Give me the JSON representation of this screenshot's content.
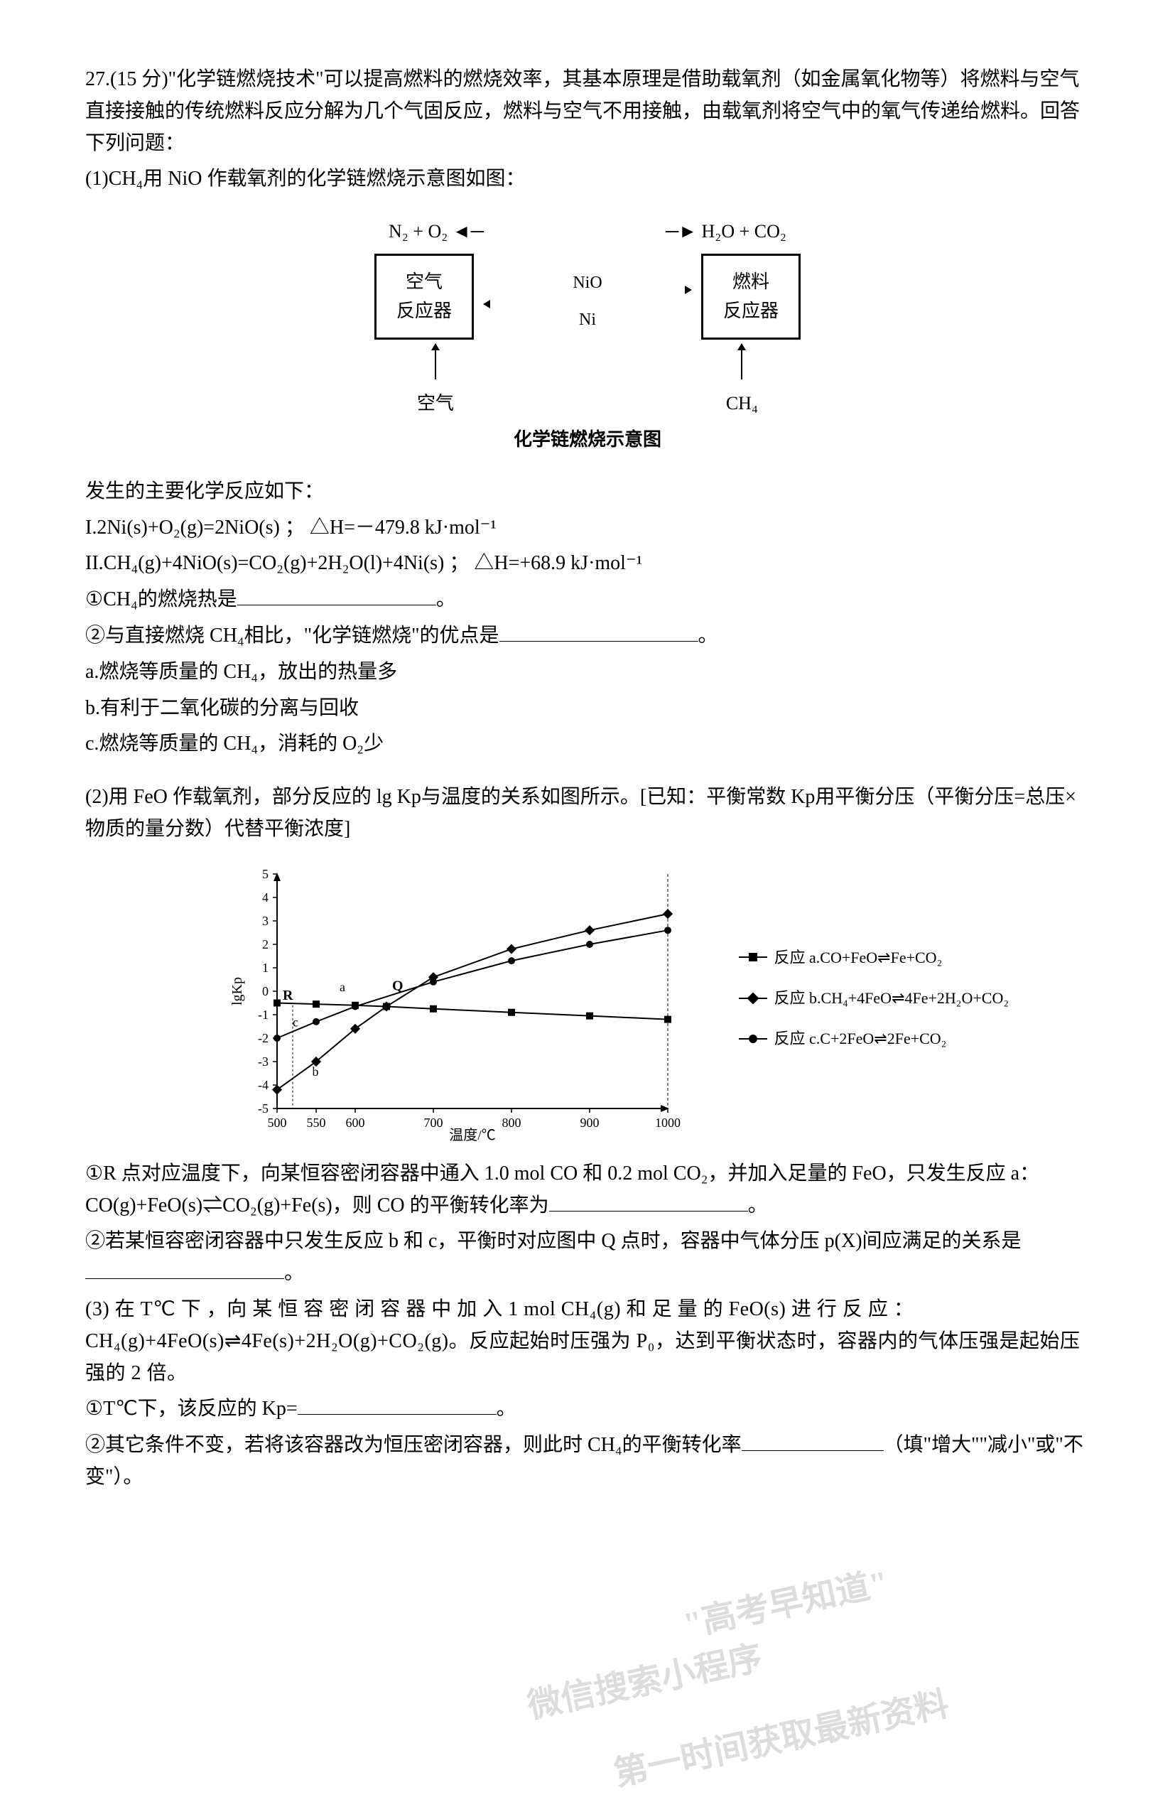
{
  "q": {
    "header": "27.(15 分)\"化学链燃烧技术\"可以提高燃料的燃烧效率，其基本原理是借助载氧剂（如金属氧化物等）将燃料与空气直接接触的传统燃料反应分解为几个气固反应，燃料与空气不用接触，由载氧剂将空气中的氧气传递给燃料。回答下列问题：",
    "p1": "(1)CH₄用 NiO 作载氧剂的化学链燃烧示意图如图：",
    "diagram1": {
      "out_left": "N₂ + O₂",
      "out_right": "H₂O + CO₂",
      "box_left_l1": "空气",
      "box_left_l2": "反应器",
      "box_right_l1": "燃料",
      "box_right_l2": "反应器",
      "top_label": "NiO",
      "bot_label": "Ni",
      "in_left": "空气",
      "in_right": "CH₄",
      "caption": "化学链燃烧示意图"
    },
    "r_intro": "发生的主要化学反应如下：",
    "r1": "I.2Ni(s)+O₂(g)=2NiO(s) ；  △H=－479.8 kJ·mol⁻¹",
    "r2": "II.CH₄(g)+4NiO(s)=CO₂(g)+2H₂O(l)+4Ni(s) ；  △H=+68.9 kJ·mol⁻¹",
    "q1_1": "①CH₄的燃烧热是",
    "q1_1_end": "。",
    "q1_2": "②与直接燃烧 CH₄相比，\"化学链燃烧\"的优点是",
    "q1_2_end": "。",
    "opt_a": "a.燃烧等质量的 CH₄，放出的热量多",
    "opt_b": "b.有利于二氧化碳的分离与回收",
    "opt_c": "c.燃烧等质量的 CH₄，消耗的 O₂少",
    "p2": "(2)用 FeO 作载氧剂，部分反应的 lg Kp与温度的关系如图所示。[已知：平衡常数 Kp用平衡分压（平衡分压=总压×物质的量分数）代替平衡浓度]",
    "chart": {
      "ylabel": "lgKp",
      "yticks": [
        5,
        4,
        3,
        2,
        1,
        0,
        -1,
        -2,
        -3,
        -4,
        -5
      ],
      "xlabel": "温度/℃",
      "xticks": [
        500,
        550,
        600,
        700,
        800,
        900,
        1000
      ],
      "ylim": [
        -5,
        5
      ],
      "xlim": [
        500,
        1000
      ],
      "point_labels": {
        "R": "R",
        "Q": "Q",
        "a": "a",
        "b": "b",
        "c": "c"
      },
      "R_x": 520,
      "R_y": -0.6,
      "Q_x": 640,
      "Q_y": -0.2,
      "series": {
        "a": {
          "type": "line",
          "marker": "square",
          "label": "反应 a.CO+FeO⇌Fe+CO₂",
          "color": "#000000",
          "points": [
            [
              500,
              -0.5
            ],
            [
              550,
              -0.55
            ],
            [
              600,
              -0.6
            ],
            [
              640,
              -0.65
            ],
            [
              700,
              -0.75
            ],
            [
              800,
              -0.9
            ],
            [
              900,
              -1.05
            ],
            [
              1000,
              -1.2
            ]
          ]
        },
        "b": {
          "type": "line",
          "marker": "diamond",
          "label": "反应 b.CH₄+4FeO⇌4Fe+2H₂O+CO₂",
          "color": "#000000",
          "points": [
            [
              500,
              -4.2
            ],
            [
              550,
              -3.0
            ],
            [
              600,
              -1.6
            ],
            [
              640,
              -0.65
            ],
            [
              700,
              0.6
            ],
            [
              800,
              1.8
            ],
            [
              900,
              2.6
            ],
            [
              1000,
              3.3
            ]
          ]
        },
        "c": {
          "type": "line",
          "marker": "circle",
          "label": "反应 c.C+2FeO⇌2Fe+CO₂",
          "color": "#000000",
          "points": [
            [
              500,
              -2.0
            ],
            [
              550,
              -1.3
            ],
            [
              600,
              -0.65
            ],
            [
              700,
              0.4
            ],
            [
              800,
              1.3
            ],
            [
              900,
              2.0
            ],
            [
              1000,
              2.6
            ]
          ]
        }
      }
    },
    "q2_1a": "①R 点对应温度下，向某恒容密闭容器中通入 1.0 mol CO 和 0.2 mol CO₂，并加入足量的 FeO，只发生反应 a：CO(g)+FeO(s)⇌CO₂(g)+Fe(s)，则 CO 的平衡转化率为",
    "q2_1_end": "。",
    "q2_2a": "②若某恒容密闭容器中只发生反应 b 和 c，平衡时对应图中 Q 点时，容器中气体分压 p(X)间应满足的关系是",
    "q2_2_end": "。",
    "p3a": "(3) 在 T℃ 下 ，向 某 恒 容 密 闭 容 器 中 加 入 1 mol CH₄(g) 和 足 量 的 FeO(s) 进 行 反 应 ：CH₄(g)+4FeO(s)⇌4Fe(s)+2H₂O(g)+CO₂(g)。反应起始时压强为 P₀，达到平衡状态时，容器内的气体压强是起始压强的 2 倍。",
    "q3_1": "①T℃下，该反应的 Kp=",
    "q3_1_end": "。",
    "q3_2a": "②其它条件不变，若将该容器改为恒压密闭容器，则此时 CH₄的平衡转化率",
    "q3_2b": "（填\"增大\"\"减小\"或\"不变\"）。"
  },
  "watermark": {
    "w1": "\"高考早知道\"",
    "w2": "微信搜索小程序",
    "w3": "第一时间获取最新资料"
  },
  "colors": {
    "text": "#000000",
    "bg": "#ffffff",
    "grid": "#000000"
  }
}
